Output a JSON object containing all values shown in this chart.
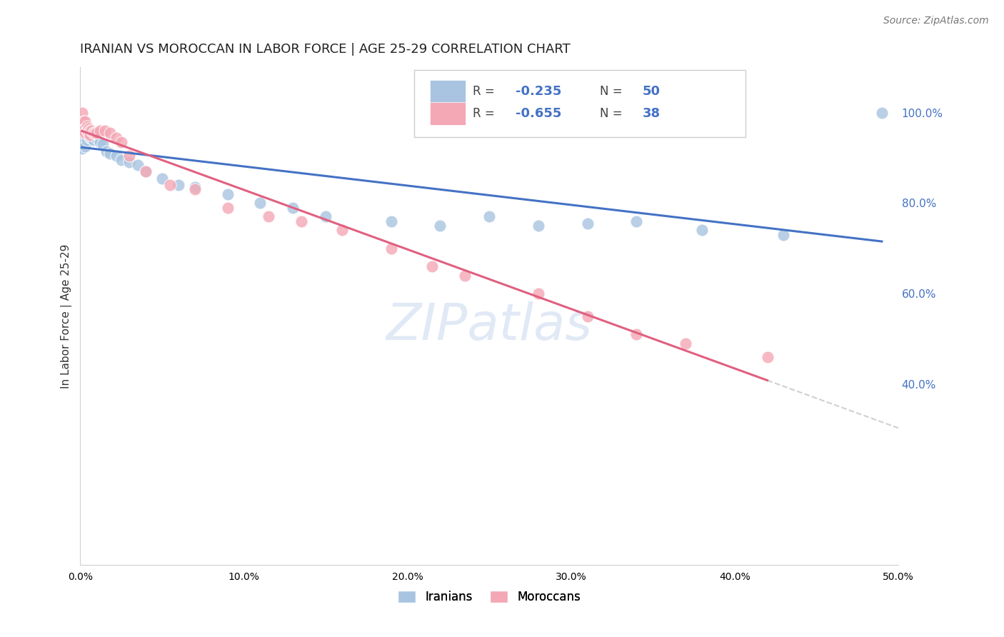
{
  "title": "IRANIAN VS MOROCCAN IN LABOR FORCE | AGE 25-29 CORRELATION CHART",
  "source": "Source: ZipAtlas.com",
  "ylabel": "In Labor Force | Age 25-29",
  "xlim": [
    0.0,
    0.5
  ],
  "ylim": [
    0.0,
    1.1
  ],
  "ytick_positions": [
    0.4,
    0.6,
    0.8,
    1.0
  ],
  "ytick_labels": [
    "40.0%",
    "60.0%",
    "80.0%",
    "100.0%"
  ],
  "xtick_positions": [
    0.0,
    0.1,
    0.2,
    0.3,
    0.4,
    0.5
  ],
  "xtick_labels": [
    "0.0%",
    "10.0%",
    "20.0%",
    "30.0%",
    "40.0%",
    "50.0%"
  ],
  "grid_color": "#d0d0d0",
  "background_color": "#ffffff",
  "iranian_color": "#a8c4e0",
  "moroccan_color": "#f4a7b5",
  "iranian_line_color": "#4472c4",
  "moroccan_line_color": "#e06080",
  "legend_R1": "-0.235",
  "legend_N1": "50",
  "legend_R2": "-0.655",
  "legend_N2": "38",
  "iranians_label": "Iranians",
  "moroccans_label": "Moroccans",
  "iranian_x": [
    0.001,
    0.001,
    0.001,
    0.002,
    0.002,
    0.002,
    0.002,
    0.003,
    0.003,
    0.003,
    0.003,
    0.003,
    0.004,
    0.004,
    0.004,
    0.005,
    0.005,
    0.006,
    0.006,
    0.007,
    0.007,
    0.008,
    0.008,
    0.009,
    0.01,
    0.012,
    0.014,
    0.016,
    0.018,
    0.022,
    0.025,
    0.03,
    0.035,
    0.04,
    0.05,
    0.06,
    0.07,
    0.09,
    0.11,
    0.13,
    0.15,
    0.19,
    0.22,
    0.25,
    0.28,
    0.31,
    0.34,
    0.38,
    0.43,
    0.49
  ],
  "iranian_y": [
    0.96,
    0.94,
    0.92,
    0.96,
    0.95,
    0.94,
    0.93,
    0.965,
    0.955,
    0.945,
    0.935,
    0.925,
    0.96,
    0.95,
    0.94,
    0.96,
    0.95,
    0.955,
    0.945,
    0.955,
    0.945,
    0.95,
    0.94,
    0.955,
    0.945,
    0.935,
    0.93,
    0.915,
    0.91,
    0.905,
    0.895,
    0.89,
    0.885,
    0.87,
    0.855,
    0.84,
    0.835,
    0.82,
    0.8,
    0.79,
    0.77,
    0.76,
    0.75,
    0.77,
    0.75,
    0.755,
    0.76,
    0.74,
    0.73,
    1.0
  ],
  "moroccan_x": [
    0.001,
    0.002,
    0.002,
    0.002,
    0.003,
    0.003,
    0.003,
    0.004,
    0.004,
    0.005,
    0.005,
    0.006,
    0.006,
    0.007,
    0.008,
    0.009,
    0.01,
    0.012,
    0.015,
    0.018,
    0.022,
    0.025,
    0.03,
    0.04,
    0.055,
    0.07,
    0.09,
    0.115,
    0.135,
    0.16,
    0.19,
    0.215,
    0.235,
    0.28,
    0.31,
    0.34,
    0.37,
    0.42
  ],
  "moroccan_y": [
    1.0,
    0.98,
    0.97,
    0.96,
    0.98,
    0.965,
    0.955,
    0.97,
    0.96,
    0.965,
    0.955,
    0.96,
    0.95,
    0.96,
    0.955,
    0.955,
    0.955,
    0.96,
    0.96,
    0.955,
    0.945,
    0.935,
    0.905,
    0.87,
    0.84,
    0.83,
    0.79,
    0.77,
    0.76,
    0.74,
    0.7,
    0.66,
    0.64,
    0.6,
    0.55,
    0.51,
    0.49,
    0.46
  ]
}
